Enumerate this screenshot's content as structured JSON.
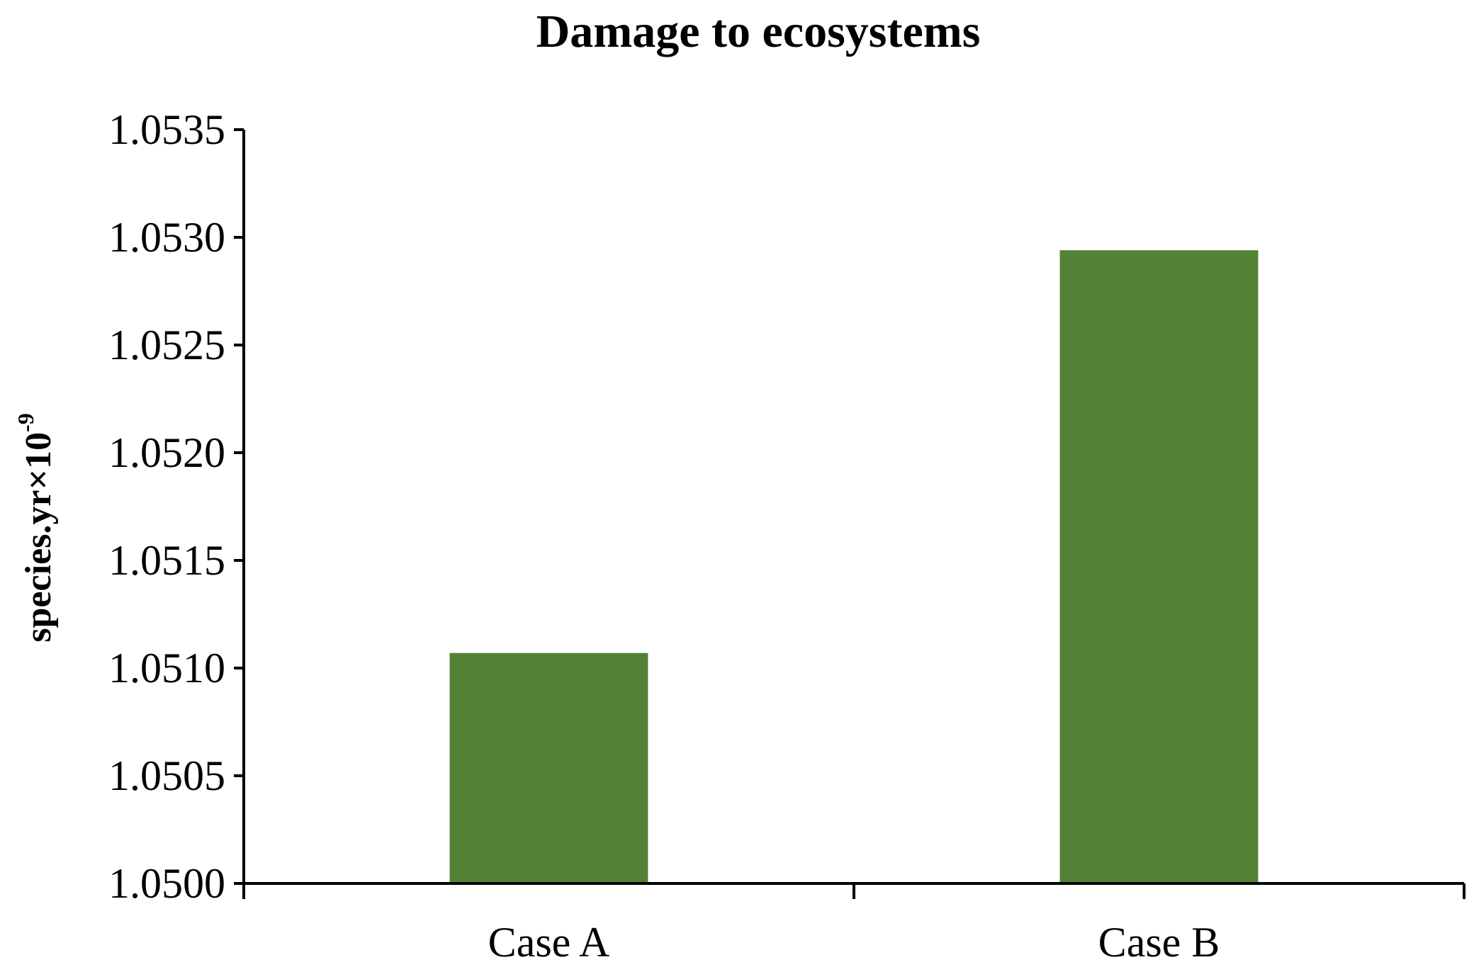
{
  "chart_data": {
    "type": "bar",
    "title": "Damage to ecosystems",
    "xlabel": "",
    "ylabel": {
      "base": "species.yr×10",
      "exponent": "-9"
    },
    "categories": [
      "Case A",
      "Case B"
    ],
    "values": [
      1.05107,
      1.05294
    ],
    "ylim": [
      1.05,
      1.0535
    ],
    "yticks": [
      "1.0500",
      "1.0505",
      "1.0510",
      "1.0515",
      "1.0520",
      "1.0525",
      "1.0530",
      "1.0535"
    ],
    "bar_color": "#538135",
    "grid": false,
    "legend": "none"
  }
}
